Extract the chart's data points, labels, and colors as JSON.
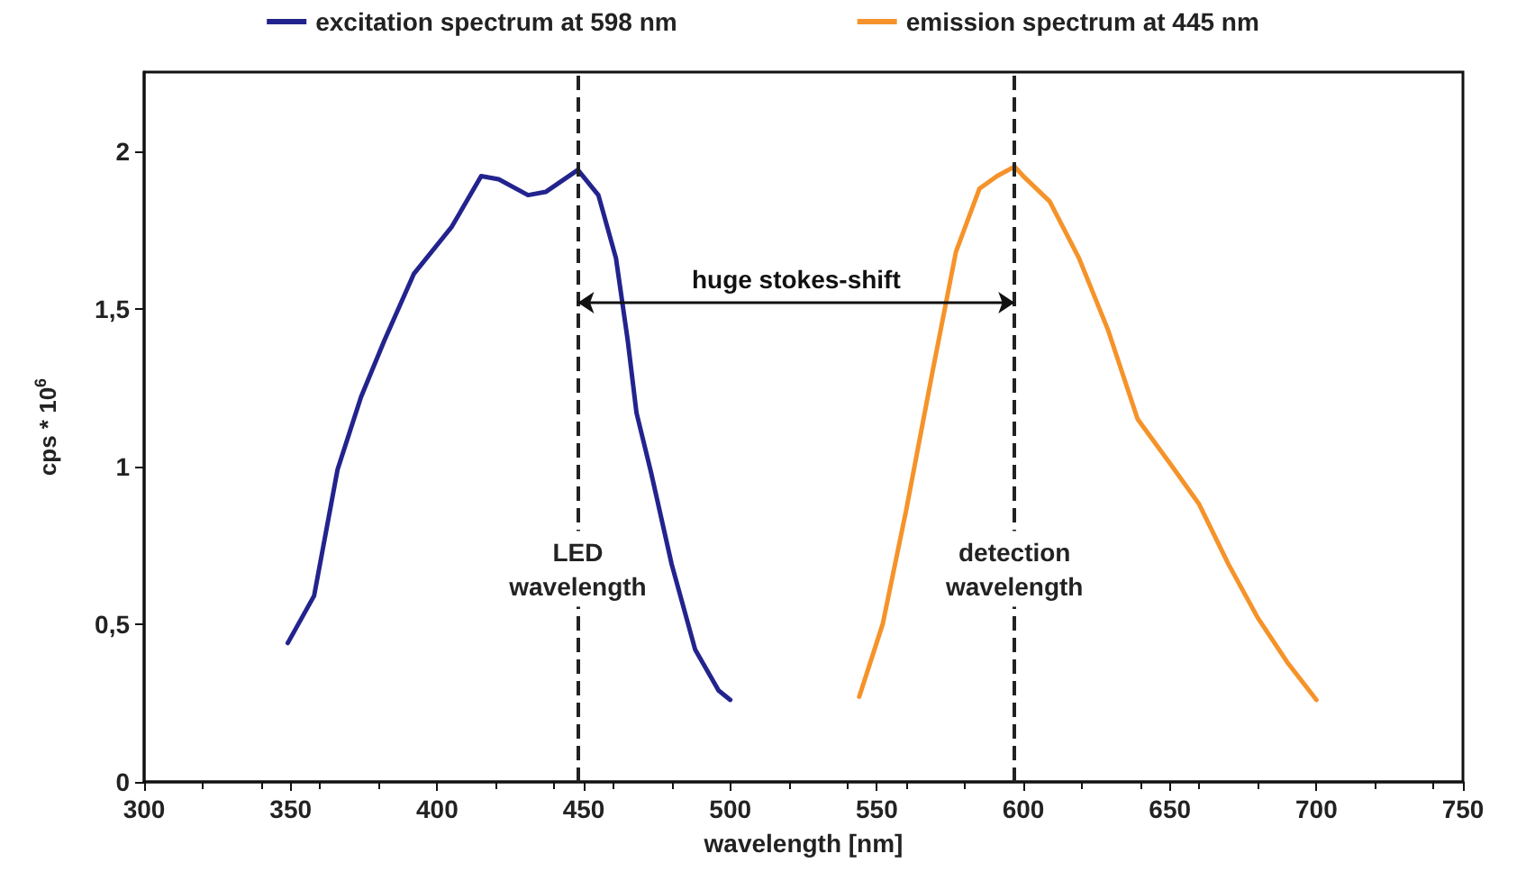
{
  "chart_data": {
    "type": "line",
    "xlabel": "wavelength [nm]",
    "ylabel": "cps * 10$^{6}$",
    "xlim": [
      300,
      750
    ],
    "xticks": [
      300,
      350,
      400,
      450,
      500,
      550,
      600,
      650,
      700,
      750
    ],
    "ylim": [
      0,
      2.25
    ],
    "yticks": [
      0,
      {
        "value": 0.5,
        "label": "0,5"
      },
      1,
      {
        "value": 1.5,
        "label": "1,5"
      },
      2
    ],
    "grid": false,
    "legend": "top",
    "marker": "none",
    "line_style": "solid",
    "series": [
      {
        "name": "excitation spectrum at 598 nm",
        "color": "#23238e",
        "x": [
          349,
          358,
          366,
          374,
          382,
          392,
          405,
          415,
          421,
          431,
          437,
          448,
          455,
          461,
          465,
          468,
          473,
          480,
          488,
          496,
          500
        ],
        "values": [
          0.44,
          0.59,
          0.99,
          1.22,
          1.4,
          1.61,
          1.76,
          1.92,
          1.91,
          1.86,
          1.87,
          1.94,
          1.86,
          1.66,
          1.4,
          1.17,
          0.98,
          0.69,
          0.42,
          0.29,
          0.26
        ]
      },
      {
        "name": "emission spectrum at 445 nm",
        "color": "#f5932a",
        "x": [
          544,
          552,
          560,
          569,
          577,
          585,
          591,
          597,
          600,
          609,
          619,
          629,
          639,
          650,
          660,
          670,
          680,
          690,
          700
        ],
        "values": [
          0.27,
          0.5,
          0.86,
          1.3,
          1.68,
          1.88,
          1.92,
          1.95,
          1.92,
          1.84,
          1.66,
          1.43,
          1.15,
          1.01,
          0.88,
          0.69,
          0.52,
          0.38,
          0.26
        ]
      }
    ],
    "ref_lines": [
      {
        "axis": "x",
        "value": 448,
        "label": "LED\nwavelength",
        "color": "#222222",
        "line_style": "dashed"
      },
      {
        "axis": "x",
        "value": 597,
        "label": "detection\nwavelength",
        "color": "#222222",
        "line_style": "dashed"
      }
    ],
    "annotations": [
      "huge stokes-shift"
    ]
  }
}
